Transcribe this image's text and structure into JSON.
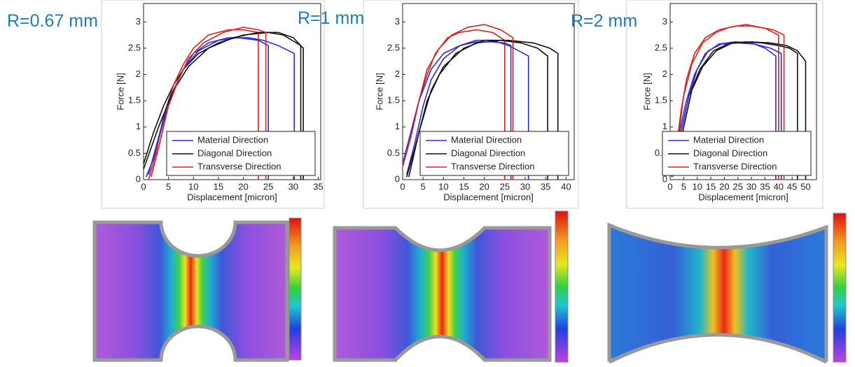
{
  "chart_data": [
    {
      "type": "line",
      "title": "R=0.67 mm",
      "xlabel": "Displacement [micron]",
      "ylabel": "Force [N]",
      "xlim": [
        0,
        35.5
      ],
      "ylim": [
        0,
        3.35
      ],
      "xticks": [
        0,
        5,
        10,
        15,
        20,
        25,
        30,
        35
      ],
      "yticks": [
        0,
        0.5,
        1,
        1.5,
        2,
        2.5,
        3
      ],
      "legend": "lower right",
      "series": [
        {
          "name": "Material Direction",
          "color": "#2b2bd9",
          "x": [
            0.5,
            2,
            4,
            6,
            8,
            10,
            13,
            17,
            21,
            24,
            27,
            30.2,
            30.2
          ],
          "values": [
            0.05,
            0.4,
            1.1,
            1.7,
            2.1,
            2.4,
            2.6,
            2.7,
            2.7,
            2.65,
            2.55,
            2.4,
            0
          ]
        },
        {
          "name": "Diagonal Direction",
          "color": "#111111",
          "x": [
            0,
            2,
            4,
            6,
            8,
            11,
            15,
            20,
            25,
            28,
            31.5,
            31.5
          ],
          "values": [
            0.3,
            0.9,
            1.4,
            1.8,
            2.1,
            2.4,
            2.6,
            2.75,
            2.8,
            2.75,
            2.55,
            0
          ]
        },
        {
          "name": "Transverse Direction",
          "color": "#e02020",
          "x": [
            1,
            2.5,
            4,
            6,
            8,
            10,
            13,
            17,
            20,
            23,
            23
          ],
          "values": [
            0,
            0.5,
            1.2,
            1.8,
            2.2,
            2.5,
            2.75,
            2.85,
            2.85,
            2.8,
            0
          ]
        },
        {
          "color": "#2b2bd9",
          "x": [
            1,
            3,
            5,
            8,
            11,
            15,
            19,
            23,
            25,
            25
          ],
          "values": [
            0.1,
            0.8,
            1.5,
            2.1,
            2.45,
            2.65,
            2.7,
            2.65,
            2.55,
            0
          ]
        },
        {
          "color": "#111111",
          "x": [
            0,
            3,
            6,
            9,
            13,
            18,
            23,
            27,
            30,
            32,
            32
          ],
          "values": [
            0.2,
            1.0,
            1.7,
            2.15,
            2.5,
            2.7,
            2.8,
            2.8,
            2.7,
            2.5,
            0
          ]
        },
        {
          "color": "#e02020",
          "x": [
            1.5,
            3,
            5,
            7,
            9,
            12,
            16,
            20,
            23,
            24.5,
            24.5
          ],
          "values": [
            0.05,
            0.6,
            1.4,
            1.9,
            2.3,
            2.6,
            2.8,
            2.9,
            2.85,
            2.8,
            0
          ]
        }
      ]
    },
    {
      "type": "line",
      "title": "R=1 mm",
      "xlabel": "Displacement [micron]",
      "ylabel": "Force [N]",
      "xlim": [
        0,
        42
      ],
      "ylim": [
        0,
        3.35
      ],
      "xticks": [
        0,
        5,
        10,
        15,
        20,
        25,
        30,
        35,
        40
      ],
      "yticks": [
        0,
        0.5,
        1,
        1.5,
        2,
        2.5,
        3
      ],
      "legend": "lower right",
      "series": [
        {
          "name": "Material Direction",
          "color": "#2b2bd9",
          "x": [
            1,
            3,
            5,
            7,
            10,
            14,
            18,
            22,
            26,
            30.8,
            30.8
          ],
          "values": [
            0.1,
            0.7,
            1.4,
            1.9,
            2.3,
            2.55,
            2.65,
            2.65,
            2.55,
            2.35,
            0
          ]
        },
        {
          "name": "Diagonal Direction",
          "color": "#111111",
          "x": [
            1,
            3,
            6,
            9,
            13,
            18,
            24,
            29,
            33,
            35.5,
            35.5
          ],
          "values": [
            0.05,
            0.6,
            1.5,
            2.0,
            2.4,
            2.6,
            2.65,
            2.6,
            2.5,
            2.35,
            0
          ]
        },
        {
          "name": "Transverse Direction",
          "color": "#e02020",
          "x": [
            0,
            2,
            4,
            6,
            8,
            11,
            14,
            18,
            22,
            25,
            25
          ],
          "values": [
            0.3,
            0.9,
            1.5,
            2.0,
            2.4,
            2.7,
            2.8,
            2.85,
            2.8,
            2.65,
            0
          ]
        },
        {
          "color": "#2b2bd9",
          "x": [
            0,
            2,
            4,
            7,
            10,
            14,
            18,
            22,
            25,
            26.5,
            26.5
          ],
          "values": [
            0.3,
            0.9,
            1.5,
            2.1,
            2.4,
            2.55,
            2.62,
            2.62,
            2.6,
            2.55,
            0
          ]
        },
        {
          "color": "#111111",
          "x": [
            1.5,
            4,
            7,
            10,
            15,
            20,
            26,
            32,
            36,
            38,
            38
          ],
          "values": [
            0.05,
            0.9,
            1.7,
            2.15,
            2.5,
            2.65,
            2.65,
            2.6,
            2.5,
            2.4,
            0
          ]
        },
        {
          "color": "#e02020",
          "x": [
            0,
            2,
            4,
            6,
            9,
            12,
            16,
            20,
            24,
            27,
            27
          ],
          "values": [
            0.25,
            0.8,
            1.5,
            2.1,
            2.5,
            2.75,
            2.9,
            2.95,
            2.85,
            2.7,
            0
          ]
        }
      ]
    },
    {
      "type": "line",
      "title": "R=2 mm",
      "xlabel": "Displacement [micron]",
      "ylabel": "Force [N]",
      "xlim": [
        0,
        54
      ],
      "ylim": [
        0,
        3.35
      ],
      "xticks": [
        0,
        5,
        10,
        15,
        20,
        25,
        30,
        35,
        40,
        45,
        50
      ],
      "yticks": [
        0,
        0.5,
        1,
        1.5,
        2,
        2.5,
        3
      ],
      "legend": "lower right",
      "series": [
        {
          "name": "Material Direction",
          "color": "#2b2bd9",
          "x": [
            1,
            3,
            6,
            9,
            13,
            18,
            24,
            30,
            35,
            39,
            39
          ],
          "values": [
            0.1,
            0.8,
            1.5,
            2.0,
            2.4,
            2.58,
            2.62,
            2.6,
            2.5,
            2.35,
            0
          ]
        },
        {
          "name": "Diagonal Direction",
          "color": "#111111",
          "x": [
            1,
            4,
            7,
            11,
            16,
            22,
            28,
            34,
            40,
            44,
            47,
            47
          ],
          "values": [
            0.1,
            0.9,
            1.6,
            2.1,
            2.45,
            2.6,
            2.62,
            2.6,
            2.55,
            2.5,
            2.4,
            0
          ]
        },
        {
          "name": "Transverse Direction",
          "color": "#e02020",
          "x": [
            0.5,
            2,
            4,
            6,
            9,
            13,
            18,
            24,
            30,
            35,
            40,
            40
          ],
          "values": [
            0.05,
            0.5,
            1.3,
            1.9,
            2.4,
            2.7,
            2.85,
            2.92,
            2.92,
            2.88,
            2.75,
            0
          ]
        },
        {
          "color": "#2b2bd9",
          "x": [
            2,
            4,
            7,
            10,
            14,
            19,
            25,
            31,
            37,
            41,
            41
          ],
          "values": [
            0.1,
            0.9,
            1.6,
            2.1,
            2.45,
            2.58,
            2.6,
            2.58,
            2.5,
            2.4,
            0
          ]
        },
        {
          "color": "#111111",
          "x": [
            2,
            5,
            8,
            12,
            17,
            23,
            30,
            37,
            43,
            47,
            50,
            50
          ],
          "values": [
            0.1,
            1.0,
            1.7,
            2.15,
            2.45,
            2.6,
            2.62,
            2.6,
            2.55,
            2.45,
            2.25,
            0
          ]
        },
        {
          "color": "#e02020",
          "x": [
            1,
            3,
            5,
            8,
            12,
            17,
            22,
            28,
            33,
            38,
            42,
            42
          ],
          "values": [
            0.05,
            0.8,
            1.6,
            2.2,
            2.6,
            2.8,
            2.9,
            2.95,
            2.9,
            2.85,
            2.75,
            0
          ]
        }
      ]
    }
  ]
}
